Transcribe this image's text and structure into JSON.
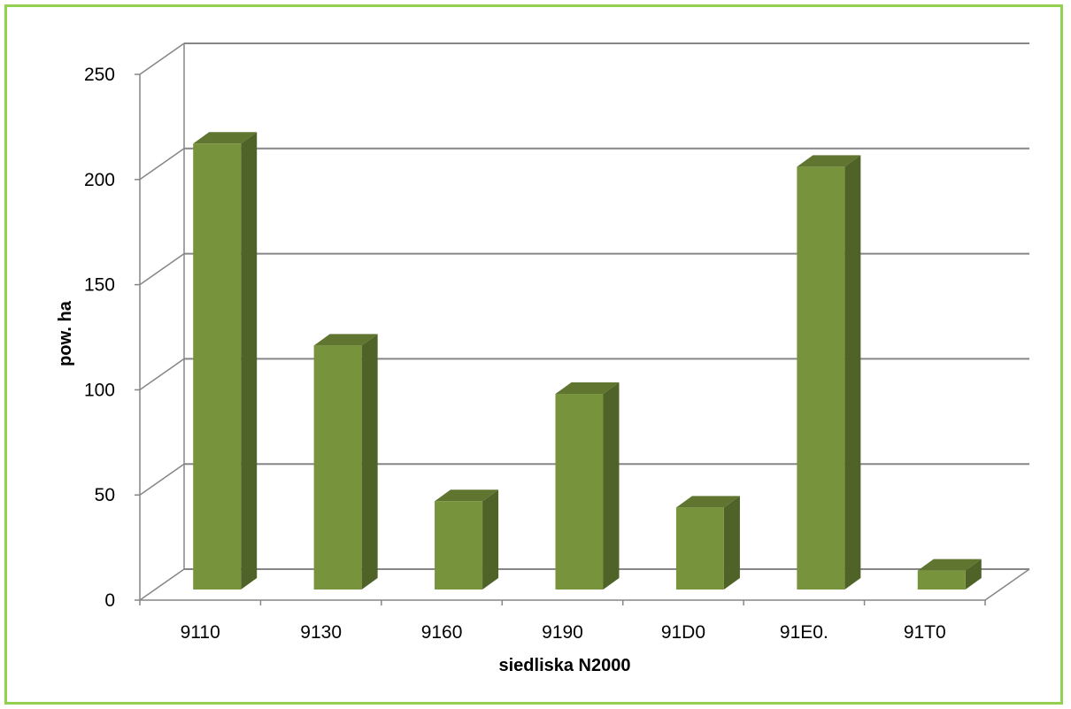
{
  "chart_data": {
    "type": "bar",
    "style": "3d-column",
    "categories": [
      "9110",
      "9130",
      "9160",
      "9190",
      "91D0",
      "91E0.",
      "91T0"
    ],
    "values": [
      212,
      116,
      42,
      93,
      39,
      201,
      9
    ],
    "xlabel": "siedliska N2000",
    "ylabel": "pow. ha",
    "ylim": [
      0,
      250
    ],
    "yticks": [
      0,
      50,
      100,
      150,
      200,
      250
    ],
    "grid": true,
    "legend": "none",
    "colors": {
      "bar_front": "#77933c",
      "bar_side": "#4f6228",
      "bar_top": "#5f7530",
      "gridline": "#868686",
      "frame_border": "#92d050"
    }
  }
}
